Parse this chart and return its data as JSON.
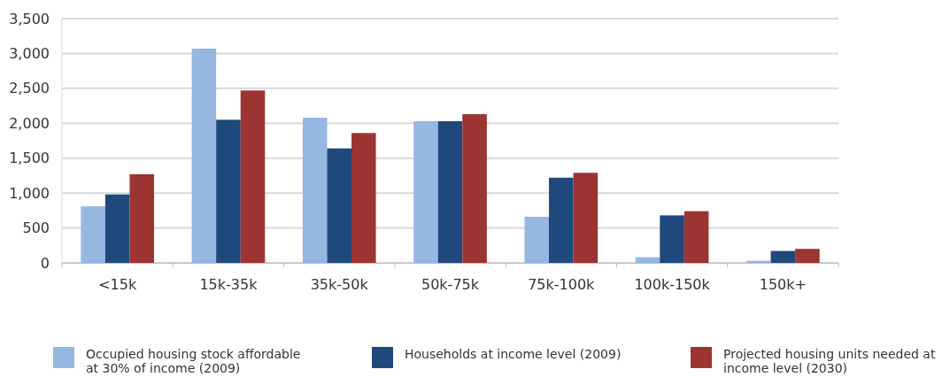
{
  "chart_data": {
    "type": "bar",
    "categories": [
      "<15k",
      "15k-35k",
      "35k-50k",
      "50k-75k",
      "75k-100k",
      "100k-150k",
      "150k+"
    ],
    "series": [
      {
        "name": "Occupied housing stock affordable at 30% of income (2009)",
        "color": "#95b8e3",
        "values": [
          810,
          3070,
          2080,
          2030,
          660,
          80,
          30
        ]
      },
      {
        "name": "Households at income level (2009)",
        "color": "#1f497d",
        "values": [
          980,
          2050,
          1640,
          2030,
          1220,
          680,
          170
        ]
      },
      {
        "name": "Projected housing units needed at income level (2030)",
        "color": "#9c3532",
        "values": [
          1270,
          2470,
          1860,
          2130,
          1290,
          740,
          200
        ]
      }
    ],
    "ylim": [
      0,
      3500
    ],
    "yticks": [
      {
        "value": 0,
        "label": "0"
      },
      {
        "value": 500,
        "label": "500"
      },
      {
        "value": 1000,
        "label": "1,000"
      },
      {
        "value": 1500,
        "label": "1,500"
      },
      {
        "value": 2000,
        "label": "2,000"
      },
      {
        "value": 2500,
        "label": "2,500"
      },
      {
        "value": 3000,
        "label": "3,000"
      },
      {
        "value": 3500,
        "label": "3,500"
      }
    ],
    "grid": "y",
    "legend": "bottom"
  }
}
